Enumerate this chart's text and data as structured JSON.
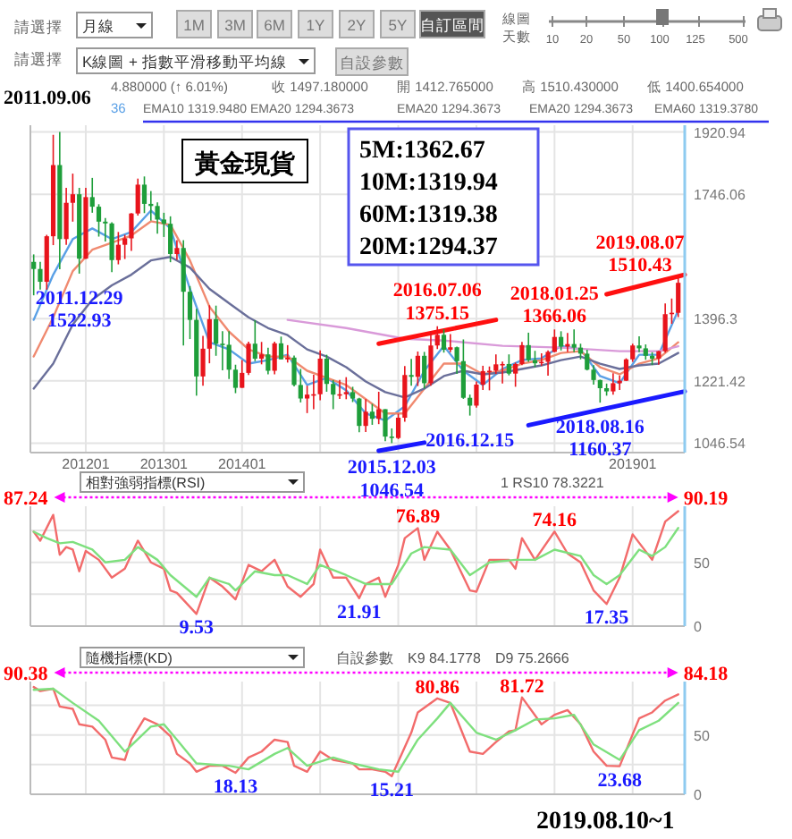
{
  "chart_data": [
    {
      "type": "other",
      "annotations": [
        "請選擇",
        "月線",
        "1M",
        "3M",
        "6M",
        "1Y",
        "2Y",
        "5Y",
        "自訂區間",
        "線圖",
        "天數",
        "10",
        "20",
        "50",
        "100",
        "125",
        "500",
        "請選擇",
        "K線圖 + 指數平滑移動平均線",
        "自設參數",
        "2011.09.06",
        "4.880000 (↑ 6.01%)",
        "收 1497.180000",
        "開 1412.765000",
        "高 1510.430000",
        "低 1400.654000",
        "36",
        "EMA10 1319.9480",
        "EMA20 1294.3673",
        "EMA20 1294.3673",
        "EMA20 1294.3673",
        "EMA60 1319.3780",
        "2019.08.10~1"
      ]
    },
    {
      "type": "candlestick",
      "title": "黃金現貨",
      "x": [
        "2011-05",
        "2011-06",
        "2011-07",
        "2011-08",
        "2011-09",
        "2011-10",
        "2011-11",
        "2011-12",
        "2012-01",
        "2012-02",
        "2012-03",
        "2012-04",
        "2012-05",
        "2012-06",
        "2012-07",
        "2012-08",
        "2012-09",
        "2012-10",
        "2012-11",
        "2012-12",
        "2013-01",
        "2013-02",
        "2013-03",
        "2013-04",
        "2013-05",
        "2013-06",
        "2013-07",
        "2013-08",
        "2013-09",
        "2013-10",
        "2013-11",
        "2013-12",
        "2014-01",
        "2014-02",
        "2014-03",
        "2014-04",
        "2014-05",
        "2014-06",
        "2014-07",
        "2014-08",
        "2014-09",
        "2014-10",
        "2014-11",
        "2014-12",
        "2015-01",
        "2015-02",
        "2015-03",
        "2015-04",
        "2015-05",
        "2015-06",
        "2015-07",
        "2015-08",
        "2015-09",
        "2015-10",
        "2015-11",
        "2015-12",
        "2016-01",
        "2016-02",
        "2016-03",
        "2016-04",
        "2016-05",
        "2016-06",
        "2016-07",
        "2016-08",
        "2016-09",
        "2016-10",
        "2016-11",
        "2016-12",
        "2017-01",
        "2017-02",
        "2017-03",
        "2017-04",
        "2017-05",
        "2017-06",
        "2017-07",
        "2017-08",
        "2017-09",
        "2017-10",
        "2017-11",
        "2017-12",
        "2018-01",
        "2018-02",
        "2018-03",
        "2018-04",
        "2018-05",
        "2018-06",
        "2018-07",
        "2018-08",
        "2018-09",
        "2018-10",
        "2018-11",
        "2018-12",
        "2019-01",
        "2019-02",
        "2019-03",
        "2019-04",
        "2019-05",
        "2019-06",
        "2019-07",
        "2019-08"
      ],
      "ohlc": [
        [
          1556,
          1577,
          1462,
          1536
        ],
        [
          1536,
          1556,
          1478,
          1500
        ],
        [
          1500,
          1632,
          1478,
          1628
        ],
        [
          1628,
          1913,
          1603,
          1828
        ],
        [
          1828,
          1920.94,
          1535,
          1620
        ],
        [
          1620,
          1764,
          1604,
          1722
        ],
        [
          1722,
          1804,
          1669,
          1746
        ],
        [
          1746,
          1764,
          1522.93,
          1565
        ],
        [
          1565,
          1764,
          1564,
          1738
        ],
        [
          1738,
          1792,
          1694,
          1711
        ],
        [
          1711,
          1718,
          1627,
          1669
        ],
        [
          1669,
          1679,
          1613,
          1664
        ],
        [
          1664,
          1667,
          1527,
          1561
        ],
        [
          1561,
          1640,
          1549,
          1604
        ],
        [
          1604,
          1632,
          1564,
          1622
        ],
        [
          1622,
          1693,
          1587,
          1692
        ],
        [
          1692,
          1790,
          1686,
          1773
        ],
        [
          1773,
          1796,
          1693,
          1719
        ],
        [
          1719,
          1755,
          1672,
          1713
        ],
        [
          1713,
          1723,
          1635,
          1675
        ],
        [
          1675,
          1694,
          1626,
          1663
        ],
        [
          1663,
          1684,
          1555,
          1578
        ],
        [
          1578,
          1617,
          1562,
          1595
        ],
        [
          1595,
          1617,
          1321,
          1472
        ],
        [
          1472,
          1488,
          1339,
          1393
        ],
        [
          1393,
          1424,
          1180,
          1234
        ],
        [
          1234,
          1348,
          1208,
          1312
        ],
        [
          1312,
          1434,
          1271,
          1395
        ],
        [
          1395,
          1433,
          1292,
          1326
        ],
        [
          1326,
          1361,
          1251,
          1323
        ],
        [
          1323,
          1361,
          1227,
          1253
        ],
        [
          1253,
          1267,
          1187,
          1202
        ],
        [
          1202,
          1280,
          1202,
          1244
        ],
        [
          1244,
          1332,
          1238,
          1326
        ],
        [
          1326,
          1392,
          1277,
          1284
        ],
        [
          1284,
          1331,
          1268,
          1296
        ],
        [
          1296,
          1315,
          1240,
          1250
        ],
        [
          1250,
          1332,
          1240,
          1327
        ],
        [
          1327,
          1346,
          1282,
          1282
        ],
        [
          1282,
          1322,
          1273,
          1287
        ],
        [
          1287,
          1293,
          1206,
          1210
        ],
        [
          1210,
          1255,
          1161,
          1172
        ],
        [
          1172,
          1208,
          1131,
          1183
        ],
        [
          1183,
          1239,
          1142,
          1184
        ],
        [
          1184,
          1307,
          1167,
          1284
        ],
        [
          1284,
          1295,
          1191,
          1213
        ],
        [
          1213,
          1224,
          1142,
          1183
        ],
        [
          1183,
          1224,
          1171,
          1184
        ],
        [
          1184,
          1232,
          1170,
          1190
        ],
        [
          1190,
          1205,
          1162,
          1172
        ],
        [
          1172,
          1174,
          1077,
          1095
        ],
        [
          1095,
          1170,
          1078,
          1135
        ],
        [
          1135,
          1157,
          1098,
          1115
        ],
        [
          1115,
          1191,
          1100,
          1142
        ],
        [
          1142,
          1142,
          1052,
          1065
        ],
        [
          1065,
          1088,
          1046.54,
          1061
        ],
        [
          1061,
          1129,
          1058,
          1118
        ],
        [
          1118,
          1263,
          1107,
          1238
        ],
        [
          1238,
          1283,
          1208,
          1233
        ],
        [
          1233,
          1304,
          1207,
          1292
        ],
        [
          1292,
          1303,
          1200,
          1215
        ],
        [
          1215,
          1362,
          1208,
          1321
        ],
        [
          1321,
          1375.15,
          1311,
          1351
        ],
        [
          1351,
          1367,
          1301,
          1309
        ],
        [
          1309,
          1353,
          1302,
          1316
        ],
        [
          1316,
          1318,
          1241,
          1277
        ],
        [
          1277,
          1338,
          1171,
          1174
        ],
        [
          1174,
          1183,
          1124,
          1152
        ],
        [
          1152,
          1220,
          1146,
          1211
        ],
        [
          1211,
          1264,
          1196,
          1249
        ],
        [
          1249,
          1262,
          1195,
          1250
        ],
        [
          1250,
          1296,
          1241,
          1268
        ],
        [
          1268,
          1276,
          1214,
          1269
        ],
        [
          1269,
          1296,
          1237,
          1242
        ],
        [
          1242,
          1273,
          1205,
          1269
        ],
        [
          1269,
          1331,
          1266,
          1322
        ],
        [
          1322,
          1357,
          1275,
          1280
        ],
        [
          1280,
          1306,
          1260,
          1271
        ],
        [
          1271,
          1299,
          1264,
          1275
        ],
        [
          1275,
          1307,
          1236,
          1303
        ],
        [
          1303,
          1366.06,
          1302,
          1345
        ],
        [
          1345,
          1361,
          1307,
          1318
        ],
        [
          1318,
          1356,
          1303,
          1325
        ],
        [
          1325,
          1366,
          1302,
          1315
        ],
        [
          1315,
          1326,
          1282,
          1298
        ],
        [
          1298,
          1309,
          1251,
          1253
        ],
        [
          1253,
          1266,
          1211,
          1224
        ],
        [
          1224,
          1225,
          1160.37,
          1201
        ],
        [
          1201,
          1214,
          1180,
          1192
        ],
        [
          1192,
          1243,
          1183,
          1215
        ],
        [
          1215,
          1237,
          1196,
          1222
        ],
        [
          1222,
          1285,
          1221,
          1282
        ],
        [
          1282,
          1326,
          1275,
          1321
        ],
        [
          1321,
          1347,
          1302,
          1313
        ],
        [
          1313,
          1324,
          1281,
          1292
        ],
        [
          1292,
          1302,
          1266,
          1284
        ],
        [
          1284,
          1306,
          1267,
          1305
        ],
        [
          1305,
          1439,
          1301,
          1409
        ],
        [
          1409,
          1453,
          1382,
          1413
        ],
        [
          1412.77,
          1510.43,
          1400.65,
          1497.18
        ]
      ],
      "colors": [
        "#1e9e3a",
        "#1e9e3a",
        "#e8141c",
        "#e8141c",
        "#1e9e3a",
        "#e8141c",
        "#e8141c",
        "#1e9e3a",
        "#e8141c",
        "#1e9e3a",
        "#1e9e3a",
        "#1e9e3a",
        "#1e9e3a",
        "#e8141c",
        "#e8141c",
        "#e8141c",
        "#e8141c",
        "#1e9e3a",
        "#1e9e3a",
        "#1e9e3a",
        "#1e9e3a",
        "#1e9e3a",
        "#e8141c",
        "#1e9e3a",
        "#1e9e3a",
        "#1e9e3a",
        "#e8141c",
        "#e8141c",
        "#1e9e3a",
        "#1e9e3a",
        "#1e9e3a",
        "#1e9e3a",
        "#e8141c",
        "#e8141c",
        "#1e9e3a",
        "#e8141c",
        "#1e9e3a",
        "#e8141c",
        "#1e9e3a",
        "#e8141c",
        "#1e9e3a",
        "#1e9e3a",
        "#e8141c",
        "#e8141c",
        "#e8141c",
        "#1e9e3a",
        "#1e9e3a",
        "#e8141c",
        "#e8141c",
        "#1e9e3a",
        "#1e9e3a",
        "#e8141c",
        "#1e9e3a",
        "#e8141c",
        "#1e9e3a",
        "#1e9e3a",
        "#e8141c",
        "#e8141c",
        "#1e9e3a",
        "#e8141c",
        "#1e9e3a",
        "#e8141c",
        "#e8141c",
        "#1e9e3a",
        "#e8141c",
        "#1e9e3a",
        "#1e9e3a",
        "#1e9e3a",
        "#e8141c",
        "#e8141c",
        "#e8141c",
        "#e8141c",
        "#e8141c",
        "#1e9e3a",
        "#e8141c",
        "#e8141c",
        "#1e9e3a",
        "#1e9e3a",
        "#e8141c",
        "#e8141c",
        "#e8141c",
        "#1e9e3a",
        "#e8141c",
        "#1e9e3a",
        "#1e9e3a",
        "#1e9e3a",
        "#1e9e3a",
        "#1e9e3a",
        "#1e9e3a",
        "#e8141c",
        "#e8141c",
        "#e8141c",
        "#e8141c",
        "#1e9e3a",
        "#1e9e3a",
        "#1e9e3a",
        "#e8141c",
        "#e8141c",
        "#e8141c",
        "#e8141c"
      ],
      "series": [
        {
          "type": "line",
          "color": "#5aa0e6",
          "x": [
            "2011-05",
            "2011-08",
            "2011-11",
            "2012-02",
            "2012-05",
            "2012-08",
            "2012-11",
            "2013-02",
            "2013-05",
            "2013-08",
            "2013-11",
            "2014-02",
            "2014-05",
            "2014-08",
            "2014-11",
            "2015-02",
            "2015-05",
            "2015-08",
            "2015-11",
            "2016-02",
            "2016-05",
            "2016-08",
            "2016-11",
            "2017-02",
            "2017-05",
            "2017-08",
            "2017-11",
            "2018-02",
            "2018-05",
            "2018-08",
            "2018-11",
            "2019-02",
            "2019-05",
            "2019-08"
          ],
          "values": [
            1393,
            1520,
            1620,
            1650,
            1620,
            1640,
            1700,
            1650,
            1480,
            1330,
            1310,
            1270,
            1280,
            1295,
            1210,
            1230,
            1195,
            1130,
            1110,
            1150,
            1250,
            1320,
            1250,
            1210,
            1255,
            1280,
            1285,
            1320,
            1310,
            1235,
            1215,
            1295,
            1295,
            1420
          ]
        },
        {
          "type": "line",
          "color": "#f08a70",
          "x": [
            "2011-05",
            "2011-08",
            "2011-11",
            "2012-02",
            "2012-05",
            "2012-08",
            "2012-11",
            "2013-02",
            "2013-05",
            "2013-08",
            "2013-11",
            "2014-02",
            "2014-05",
            "2014-08",
            "2014-11",
            "2015-02",
            "2015-05",
            "2015-08",
            "2015-11",
            "2016-02",
            "2016-05",
            "2016-08",
            "2016-11",
            "2017-02",
            "2017-05",
            "2017-08",
            "2017-11",
            "2018-02",
            "2018-05",
            "2018-08",
            "2018-11",
            "2019-02",
            "2019-05",
            "2019-08"
          ],
          "values": [
            1290,
            1400,
            1530,
            1590,
            1610,
            1630,
            1670,
            1660,
            1560,
            1430,
            1360,
            1310,
            1290,
            1290,
            1250,
            1230,
            1210,
            1170,
            1130,
            1130,
            1200,
            1270,
            1270,
            1240,
            1250,
            1270,
            1280,
            1300,
            1305,
            1260,
            1240,
            1270,
            1285,
            1330
          ]
        },
        {
          "type": "line",
          "color": "#6a6f9a",
          "x": [
            "2011-05",
            "2011-08",
            "2011-11",
            "2012-02",
            "2012-05",
            "2012-08",
            "2012-11",
            "2013-02",
            "2013-05",
            "2013-08",
            "2013-11",
            "2014-02",
            "2014-05",
            "2014-08",
            "2014-11",
            "2015-02",
            "2015-05",
            "2015-08",
            "2015-11",
            "2016-02",
            "2016-05",
            "2016-08",
            "2016-11",
            "2017-02",
            "2017-05",
            "2017-08",
            "2017-11",
            "2018-02",
            "2018-05",
            "2018-08",
            "2018-11",
            "2019-02",
            "2019-05",
            "2019-08"
          ],
          "values": [
            1200,
            1270,
            1380,
            1450,
            1490,
            1520,
            1560,
            1570,
            1540,
            1480,
            1440,
            1400,
            1370,
            1350,
            1310,
            1290,
            1260,
            1220,
            1190,
            1175,
            1200,
            1235,
            1250,
            1240,
            1245,
            1255,
            1265,
            1280,
            1290,
            1270,
            1255,
            1265,
            1270,
            1300
          ]
        },
        {
          "type": "line",
          "color": "#d99ad9",
          "x": [
            "2014-08",
            "2015-05",
            "2016-02",
            "2016-08",
            "2017-05",
            "2018-02",
            "2018-11",
            "2019-05",
            "2019-08"
          ],
          "values": [
            1393,
            1370,
            1340,
            1335,
            1320,
            1315,
            1305,
            1305,
            1319
          ]
        },
        {
          "type": "line",
          "color": "#ff1010",
          "x": [
            "2015-10",
            "2017-04"
          ],
          "values": [
            1326,
            1393
          ]
        },
        {
          "type": "line",
          "color": "#ff1010",
          "x": [
            "2018-09",
            "2019-09-01"
          ],
          "values": [
            1465,
            1520
          ]
        },
        {
          "type": "line",
          "color": "#1a1aff",
          "x": [
            "2015-10",
            "2016-05"
          ],
          "values": [
            1025,
            1048
          ]
        },
        {
          "type": "line",
          "color": "#1a1aff",
          "x": [
            "2017-09",
            "2019-09-01"
          ],
          "values": [
            1097,
            1192
          ]
        }
      ],
      "xlim": [
        "2011-04-16",
        "2019-09-01"
      ],
      "xticks": [
        {
          "value": "2012-01",
          "label": "201201"
        },
        {
          "value": "2013-01",
          "label": "201301"
        },
        {
          "value": "2014-01",
          "label": "201401"
        },
        {
          "value": "2015-01",
          "label": null
        },
        {
          "value": "2016-01",
          "label": null
        },
        {
          "value": "2017-01",
          "label": null
        },
        {
          "value": "2018-01",
          "label": null
        },
        {
          "value": "2019-01",
          "label": "201901"
        }
      ],
      "ylim": [
        1020,
        1940
      ],
      "yticks": [
        1046.54,
        1221.42,
        1396.3,
        {
          "value": 1571.18,
          "label": null
        },
        1746.06,
        1920.94
      ],
      "grid": true,
      "annotations": [
        "5M:1362.67",
        "10M:1319.94",
        "60M:1319.38",
        "20M:1294.37",
        {
          "text": "2011.12.29\n1522.93",
          "x": "2011-12",
          "y": 1522.93
        },
        {
          "text": "2015.12.03\n1046.54",
          "x": "2015-12",
          "y": 1046.54
        },
        {
          "text": "2016.07.06\n1375.15",
          "x": "2016-07",
          "y": 1375.15
        },
        {
          "text": "2016.12.15",
          "x": "2016-12",
          "y": 1124
        },
        {
          "text": "2018.01.25\n1366.06",
          "x": "2018-01",
          "y": 1366.06
        },
        {
          "text": "2018.08.16\n1160.37",
          "x": "2018-08",
          "y": 1160.37
        },
        {
          "text": "2019.08.07\n1510.43",
          "x": "2019-08",
          "y": 1510.43
        }
      ]
    },
    {
      "type": "line",
      "xlim": [
        "2011-04-16",
        "2019-09-01"
      ],
      "xticks": [
        {
          "value": "2012-01",
          "label": null
        },
        {
          "value": "2013-01",
          "label": null
        },
        {
          "value": "2014-01",
          "label": null
        },
        {
          "value": "2015-01",
          "label": null
        },
        {
          "value": "2016-01",
          "label": null
        },
        {
          "value": "2017-01",
          "label": null
        },
        {
          "value": "2018-01",
          "label": null
        },
        {
          "value": "2019-01",
          "label": null
        }
      ],
      "ylim": [
        0,
        94
      ],
      "yticks": [
        0,
        {
          "value": 25,
          "label": null
        },
        50,
        {
          "value": 75,
          "label": null
        }
      ],
      "grid": true,
      "tick_labels": "y",
      "series": [
        {
          "color": "#f26b6b",
          "x": [
            "2011-05",
            "2011-06",
            "2011-08",
            "2011-09",
            "2011-10",
            "2011-11",
            "2011-12",
            "2012-01",
            "2012-03",
            "2012-05",
            "2012-07",
            "2012-09",
            "2012-11",
            "2013-01",
            "2013-02",
            "2013-03",
            "2013-06",
            "2013-08",
            "2013-10",
            "2013-12",
            "2014-02",
            "2014-04",
            "2014-06",
            "2014-08",
            "2014-10",
            "2014-12",
            "2015-01",
            "2015-03",
            "2015-05",
            "2015-07",
            "2015-08",
            "2015-10",
            "2015-11",
            "2016-01",
            "2016-02",
            "2016-04",
            "2016-05",
            "2016-07",
            "2016-09",
            "2016-12",
            "2017-01",
            "2017-03",
            "2017-06",
            "2017-07",
            "2017-08",
            "2017-10",
            "2018-01",
            "2018-03",
            "2018-05",
            "2018-07",
            "2018-09",
            "2018-11",
            "2019-01",
            "2019-04",
            "2019-06",
            "2019-08"
          ],
          "values": [
            74,
            67,
            87.24,
            56,
            62,
            60,
            43,
            59,
            52,
            38,
            45,
            67,
            50,
            45,
            28,
            26,
            9.53,
            38,
            31,
            21,
            48,
            43,
            52,
            31,
            23,
            33,
            60,
            38,
            38,
            21.91,
            33,
            38,
            23,
            48,
            69,
            76.89,
            52,
            74,
            60,
            28,
            27,
            52,
            52,
            45,
            69,
            52,
            74.16,
            57,
            50,
            28,
            17.35,
            38,
            72,
            52,
            82,
            90.19
          ]
        },
        {
          "color": "#7ee07e",
          "x": [
            "2011-05",
            "2011-07",
            "2011-09",
            "2011-11",
            "2012-02",
            "2012-04",
            "2012-07",
            "2012-09",
            "2012-12",
            "2013-02",
            "2013-06",
            "2013-08",
            "2013-11",
            "2013-12",
            "2014-03",
            "2014-06",
            "2014-08",
            "2014-11",
            "2015-01",
            "2015-05",
            "2015-08",
            "2015-12",
            "2016-03",
            "2016-05",
            "2016-09",
            "2016-12",
            "2017-03",
            "2017-07",
            "2017-10",
            "2018-01",
            "2018-05",
            "2018-07",
            "2018-09",
            "2018-11",
            "2019-02",
            "2019-04",
            "2019-06",
            "2019-08"
          ],
          "values": [
            74,
            69,
            65,
            66,
            60,
            50,
            52,
            62,
            52,
            40,
            23,
            38,
            33,
            28,
            43,
            40,
            40,
            33,
            48,
            40,
            33,
            33,
            57,
            62,
            60,
            40,
            50,
            52,
            52,
            60,
            55,
            40,
            33,
            40,
            60,
            55,
            62,
            77
          ]
        }
      ],
      "annotations": [
        "相對強弱指標(RSI)",
        "1 RS10 78.3221",
        {
          "text": "87.24",
          "x": "2011-08",
          "y": 87.24
        },
        {
          "text": "9.53",
          "x": "2013-06",
          "y": 9.53
        },
        {
          "text": "21.91",
          "x": "2015-07",
          "y": 21.91
        },
        {
          "text": "76.89",
          "x": "2016-04",
          "y": 76.89
        },
        {
          "text": "74.16",
          "x": "2018-01",
          "y": 74.16
        },
        {
          "text": "17.35",
          "x": "2018-09",
          "y": 17.35
        },
        {
          "text": "90.19",
          "x": "2019-08",
          "y": 90.19
        }
      ]
    },
    {
      "type": "line",
      "xlim": [
        "2011-04-16",
        "2019-09-01"
      ],
      "xticks": [
        {
          "value": "2012-01",
          "label": null
        },
        {
          "value": "2013-01",
          "label": null
        },
        {
          "value": "2014-01",
          "label": null
        },
        {
          "value": "2015-01",
          "label": null
        },
        {
          "value": "2016-01",
          "label": null
        },
        {
          "value": "2017-01",
          "label": null
        },
        {
          "value": "2018-01",
          "label": null
        },
        {
          "value": "2019-01",
          "label": null
        }
      ],
      "ylim": [
        0,
        95
      ],
      "yticks": [
        0,
        {
          "value": 25,
          "label": null
        },
        50,
        {
          "value": 75,
          "label": null
        }
      ],
      "grid": true,
      "tick_labels": "y",
      "series": [
        {
          "color": "#f26b6b",
          "x": [
            "2011-05",
            "2011-06",
            "2011-08",
            "2011-09",
            "2011-11",
            "2011-12",
            "2012-02",
            "2012-04",
            "2012-05",
            "2012-07",
            "2012-08",
            "2012-10",
            "2012-12",
            "2013-02",
            "2013-03",
            "2013-05",
            "2013-06",
            "2013-08",
            "2013-10",
            "2013-12",
            "2014-02",
            "2014-04",
            "2014-06",
            "2014-08",
            "2014-09",
            "2014-11",
            "2015-01",
            "2015-03",
            "2015-06",
            "2015-07",
            "2015-09",
            "2015-11",
            "2015-12",
            "2016-03",
            "2016-04",
            "2016-07",
            "2016-09",
            "2016-12",
            "2017-02",
            "2017-04",
            "2017-06",
            "2017-07",
            "2017-08",
            "2017-11",
            "2018-01",
            "2018-03",
            "2018-05",
            "2018-07",
            "2018-09",
            "2018-11",
            "2019-02",
            "2019-04",
            "2019-06",
            "2019-08"
          ],
          "values": [
            90.38,
            87,
            89,
            74,
            72,
            59,
            57,
            46,
            31,
            29,
            46,
            64,
            59,
            49,
            34,
            26,
            19,
            24,
            24,
            18.13,
            31,
            36,
            46,
            44,
            24,
            19,
            36,
            29,
            26,
            21,
            21,
            19,
            15.21,
            52,
            69,
            80.86,
            77,
            36,
            34,
            44,
            53,
            54,
            81.72,
            59,
            67,
            71,
            59,
            36,
            24,
            23.68,
            64,
            69,
            79,
            84.18
          ]
        },
        {
          "color": "#7ee07e",
          "x": [
            "2011-05",
            "2011-08",
            "2011-11",
            "2012-03",
            "2012-07",
            "2012-11",
            "2013-01",
            "2013-03",
            "2013-06",
            "2013-11",
            "2014-02",
            "2014-06",
            "2014-08",
            "2014-11",
            "2015-03",
            "2015-06",
            "2015-10",
            "2016-01",
            "2016-04",
            "2016-07",
            "2016-09",
            "2017-01",
            "2017-04",
            "2017-07",
            "2017-10",
            "2018-01",
            "2018-04",
            "2018-07",
            "2018-11",
            "2019-02",
            "2019-05",
            "2019-08"
          ],
          "values": [
            88,
            89,
            77,
            62,
            36,
            57,
            59,
            46,
            26,
            24,
            21,
            34,
            39,
            24,
            31,
            26,
            21,
            19,
            46,
            64,
            77,
            52,
            46,
            54,
            63,
            64,
            67,
            42,
            29,
            54,
            62,
            77
          ]
        }
      ],
      "annotations": [
        "隨機指標(KD)",
        "自設參數",
        "K9 84.1778",
        "D9 75.2666",
        {
          "text": "90.38",
          "x": "2011-05",
          "y": 90.38
        },
        {
          "text": "18.13",
          "x": "2013-12",
          "y": 18.13
        },
        {
          "text": "15.21",
          "x": "2015-12",
          "y": 15.21
        },
        {
          "text": "80.86",
          "x": "2016-07",
          "y": 80.86
        },
        {
          "text": "81.72",
          "x": "2017-08",
          "y": 81.72
        },
        {
          "text": "23.68",
          "x": "2018-11",
          "y": 23.68
        },
        {
          "text": "84.18",
          "x": "2019-08",
          "y": 84.18
        }
      ]
    }
  ]
}
